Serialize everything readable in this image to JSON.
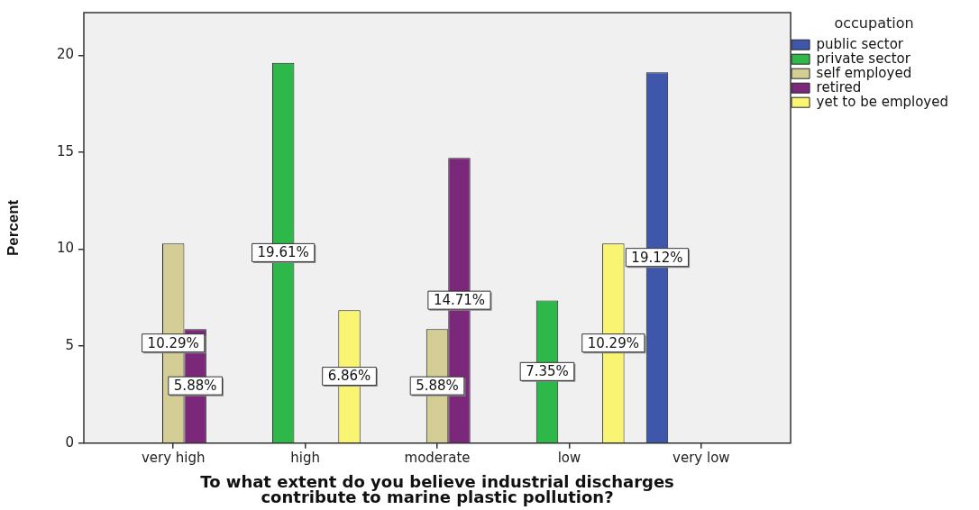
{
  "chart_data": {
    "type": "bar",
    "xlabel": "To what extent do you believe industrial discharges contribute to marine plastic pollution?",
    "ylabel": "Percent",
    "legend_title": "occupation",
    "legend": "top right",
    "categories": [
      "very high",
      "high",
      "moderate",
      "low",
      "very low"
    ],
    "series": [
      {
        "name": "public sector",
        "color": "#3e57ab",
        "values": [
          null,
          null,
          null,
          null,
          19.12
        ],
        "value_labels": [
          null,
          null,
          null,
          null,
          "19.12%"
        ]
      },
      {
        "name": "private sector",
        "color": "#2eb84a",
        "values": [
          null,
          19.61,
          null,
          7.35,
          null
        ],
        "value_labels": [
          null,
          "19.61%",
          null,
          "7.35%",
          null
        ]
      },
      {
        "name": "self employed",
        "color": "#d4ce96",
        "values": [
          10.29,
          null,
          5.88,
          null,
          null
        ],
        "value_labels": [
          "10.29%",
          null,
          "5.88%",
          null,
          null
        ]
      },
      {
        "name": "retired",
        "color": "#7b277a",
        "values": [
          5.88,
          null,
          14.71,
          null,
          null
        ],
        "value_labels": [
          "5.88%",
          null,
          "14.71%",
          null,
          null
        ]
      },
      {
        "name": "yet to be employed",
        "color": "#f9f471",
        "values": [
          null,
          6.86,
          null,
          10.29,
          null
        ],
        "value_labels": [
          null,
          "6.86%",
          null,
          "10.29%",
          null
        ]
      }
    ],
    "ylim": [
      0,
      22.2
    ],
    "yticks": [
      0,
      5,
      10,
      15,
      20
    ]
  }
}
